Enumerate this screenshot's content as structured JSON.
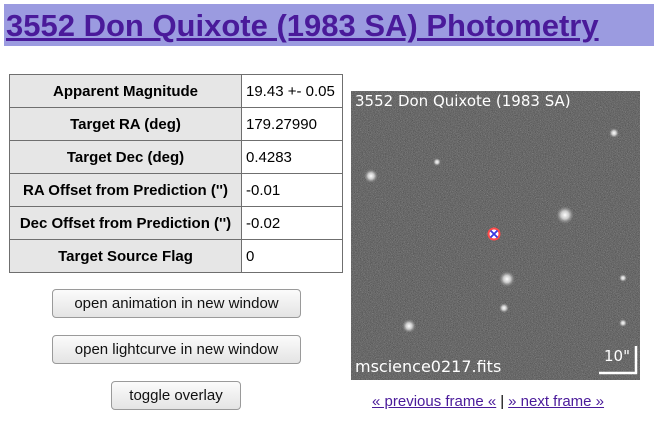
{
  "header": {
    "title": "3552 Don Quixote (1983 SA) Photometry",
    "background": "#9b9be0",
    "title_color": "#4a1a9a"
  },
  "properties": [
    {
      "label": "Apparent Magnitude",
      "value": "19.43 +- 0.05"
    },
    {
      "label": "Target RA (deg)",
      "value": "179.27990"
    },
    {
      "label": "Target Dec (deg)",
      "value": "0.4283"
    },
    {
      "label": "RA Offset from Prediction ('')",
      "value": "-0.01"
    },
    {
      "label": "Dec Offset from Prediction ('')",
      "value": "-0.02"
    },
    {
      "label": "Target Source Flag",
      "value": "0"
    }
  ],
  "buttons": {
    "animation": "open animation in new window",
    "lightcurve": "open lightcurve in new window",
    "overlay": "toggle overlay"
  },
  "image": {
    "title": "3552 Don Quixote (1983 SA)",
    "filename": "mscience0217.fits",
    "scale_label": "10\""
  },
  "frame_nav": {
    "previous": "« previous frame «",
    "separator": "|",
    "next": "» next frame »"
  }
}
